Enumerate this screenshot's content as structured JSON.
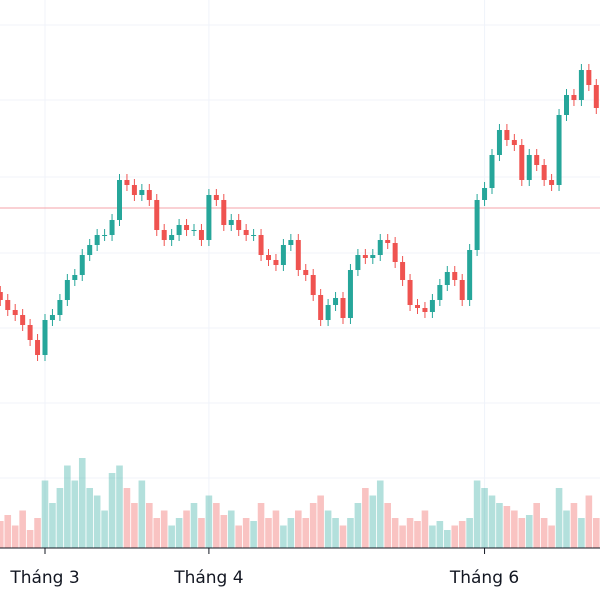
{
  "chart_data": {
    "type": "candlestick",
    "categories": [
      null,
      null,
      null,
      null,
      null,
      null,
      "Tháng 3",
      null,
      null,
      null,
      null,
      null,
      null,
      null,
      null,
      null,
      null,
      null,
      null,
      null,
      null,
      null,
      null,
      null,
      null,
      null,
      null,
      null,
      "Tháng 4",
      null,
      null,
      null,
      null,
      null,
      null,
      null,
      null,
      null,
      null,
      null,
      null,
      null,
      null,
      null,
      null,
      null,
      null,
      null,
      null,
      null,
      null,
      null,
      null,
      null,
      null,
      null,
      null,
      null,
      null,
      null,
      null,
      null,
      null,
      null,
      null,
      "Tháng 6",
      null,
      null,
      null,
      null,
      null,
      null,
      null,
      null,
      null,
      null,
      null,
      null,
      null,
      null,
      null
    ],
    "open": [
      308,
      300,
      290,
      285,
      275,
      260,
      245,
      280,
      285,
      300,
      320,
      325,
      345,
      355,
      365,
      365,
      380,
      420,
      415,
      405,
      410,
      400,
      370,
      360,
      365,
      375,
      370,
      370,
      360,
      405,
      400,
      375,
      380,
      370,
      365,
      365,
      345,
      340,
      335,
      355,
      360,
      330,
      325,
      305,
      280,
      295,
      302,
      282,
      330,
      345,
      342,
      345,
      360,
      357,
      338,
      320,
      295,
      292,
      288,
      300,
      315,
      328,
      320,
      300,
      350,
      400,
      412,
      445,
      470,
      460,
      455,
      420,
      445,
      435,
      420,
      415,
      485,
      505,
      500,
      530,
      515
    ],
    "high": [
      314,
      306,
      296,
      291,
      281,
      266,
      286,
      291,
      306,
      326,
      331,
      351,
      361,
      371,
      371,
      386,
      426,
      426,
      421,
      416,
      416,
      406,
      376,
      371,
      381,
      381,
      376,
      376,
      411,
      411,
      406,
      386,
      386,
      376,
      371,
      371,
      351,
      346,
      361,
      366,
      366,
      336,
      331,
      311,
      301,
      308,
      308,
      336,
      351,
      351,
      351,
      366,
      366,
      363,
      344,
      326,
      301,
      298,
      306,
      321,
      334,
      334,
      326,
      356,
      406,
      418,
      451,
      476,
      476,
      466,
      461,
      451,
      451,
      441,
      426,
      491,
      511,
      511,
      536,
      536,
      521
    ],
    "low": [
      294,
      284,
      279,
      269,
      254,
      239,
      239,
      274,
      279,
      294,
      314,
      319,
      339,
      349,
      359,
      359,
      374,
      409,
      399,
      399,
      394,
      364,
      354,
      354,
      359,
      364,
      364,
      354,
      354,
      394,
      369,
      369,
      364,
      359,
      359,
      339,
      334,
      329,
      329,
      349,
      324,
      319,
      299,
      274,
      274,
      289,
      276,
      276,
      324,
      336,
      336,
      339,
      351,
      332,
      314,
      289,
      286,
      282,
      282,
      294,
      309,
      314,
      294,
      294,
      344,
      394,
      406,
      439,
      454,
      449,
      414,
      414,
      429,
      414,
      409,
      409,
      479,
      494,
      494,
      509,
      486
    ],
    "close": [
      300,
      290,
      285,
      275,
      260,
      245,
      280,
      285,
      300,
      320,
      325,
      345,
      355,
      365,
      365,
      380,
      420,
      415,
      405,
      410,
      400,
      370,
      360,
      365,
      375,
      370,
      370,
      360,
      405,
      400,
      375,
      380,
      370,
      365,
      365,
      345,
      340,
      335,
      355,
      360,
      330,
      325,
      305,
      280,
      295,
      302,
      282,
      330,
      345,
      342,
      345,
      360,
      357,
      338,
      320,
      295,
      292,
      288,
      300,
      315,
      328,
      320,
      300,
      350,
      400,
      412,
      445,
      470,
      460,
      455,
      420,
      445,
      435,
      420,
      415,
      485,
      505,
      500,
      530,
      515,
      492
    ],
    "volume": [
      18,
      22,
      15,
      25,
      12,
      20,
      45,
      30,
      40,
      55,
      45,
      60,
      40,
      35,
      25,
      50,
      55,
      40,
      30,
      45,
      30,
      20,
      25,
      15,
      20,
      25,
      30,
      20,
      35,
      30,
      22,
      25,
      15,
      20,
      18,
      30,
      20,
      25,
      15,
      20,
      25,
      20,
      30,
      35,
      25,
      20,
      15,
      20,
      30,
      40,
      35,
      45,
      30,
      20,
      15,
      20,
      18,
      25,
      15,
      18,
      12,
      15,
      18,
      20,
      45,
      40,
      35,
      30,
      28,
      25,
      20,
      22,
      30,
      20,
      15,
      40,
      25,
      30,
      20,
      35,
      20
    ],
    "up_color": "#26a69a",
    "down_color": "#ef5350",
    "ylim": [
      52,
      600
    ],
    "yticks": [
      575,
      500,
      423,
      347,
      272,
      197,
      122
    ],
    "volume_ylim": [
      0,
      100
    ],
    "price_line": 392,
    "price_line_color": "#f4a3a8",
    "grid": true
  }
}
